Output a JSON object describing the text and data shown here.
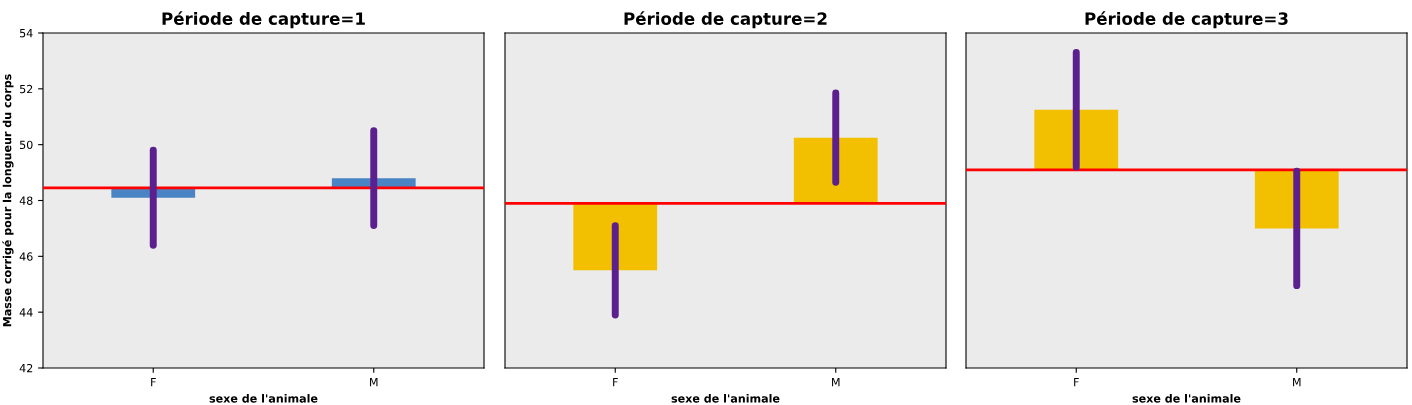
{
  "chart_data": [
    {
      "type": "bar",
      "title": "Période de capture=1",
      "xlabel": "sexe de l'animale",
      "ylabel": "Masse corrigé pour la longueur du corps",
      "categories": [
        "F",
        "M"
      ],
      "values": [
        -0.35,
        0.35
      ],
      "base": [
        48.45,
        48.45
      ],
      "errors": [
        1.7,
        1.7
      ],
      "color": "#4a84c4",
      "ylim": [
        42,
        54
      ],
      "yticks": [
        42,
        44,
        46,
        48,
        50,
        52,
        54
      ],
      "ref_lines": [
        {
          "axis": "y",
          "value": 48.45,
          "color": "#ff0000"
        }
      ],
      "grid": false,
      "legend": false
    },
    {
      "type": "bar",
      "title": "Période de capture=2",
      "xlabel": "sexe de l'animale",
      "categories": [
        "F",
        "M"
      ],
      "values": [
        -2.4,
        2.35
      ],
      "base": [
        47.9,
        47.9
      ],
      "errors": [
        1.6,
        1.6
      ],
      "color": "#f2c000",
      "ylim": [
        42,
        54
      ],
      "yticks": [
        42,
        44,
        46,
        48,
        50,
        52,
        54
      ],
      "tick_labels": "x",
      "ref_lines": [
        {
          "axis": "y",
          "value": 47.9,
          "color": "#ff0000"
        }
      ],
      "grid": false,
      "legend": false
    },
    {
      "type": "bar",
      "title": "Période de capture=3",
      "xlabel": "sexe de l'animale",
      "categories": [
        "F",
        "M"
      ],
      "values": [
        2.15,
        -2.1
      ],
      "base": [
        49.1,
        49.1
      ],
      "errors": [
        2.05,
        2.05
      ],
      "color": "#f2c000",
      "ylim": [
        42,
        54
      ],
      "yticks": [
        42,
        44,
        46,
        48,
        50,
        52,
        54
      ],
      "tick_labels": "x",
      "ref_lines": [
        {
          "axis": "y",
          "value": 49.1,
          "color": "#ff0000"
        }
      ],
      "grid": false,
      "legend": false
    }
  ]
}
